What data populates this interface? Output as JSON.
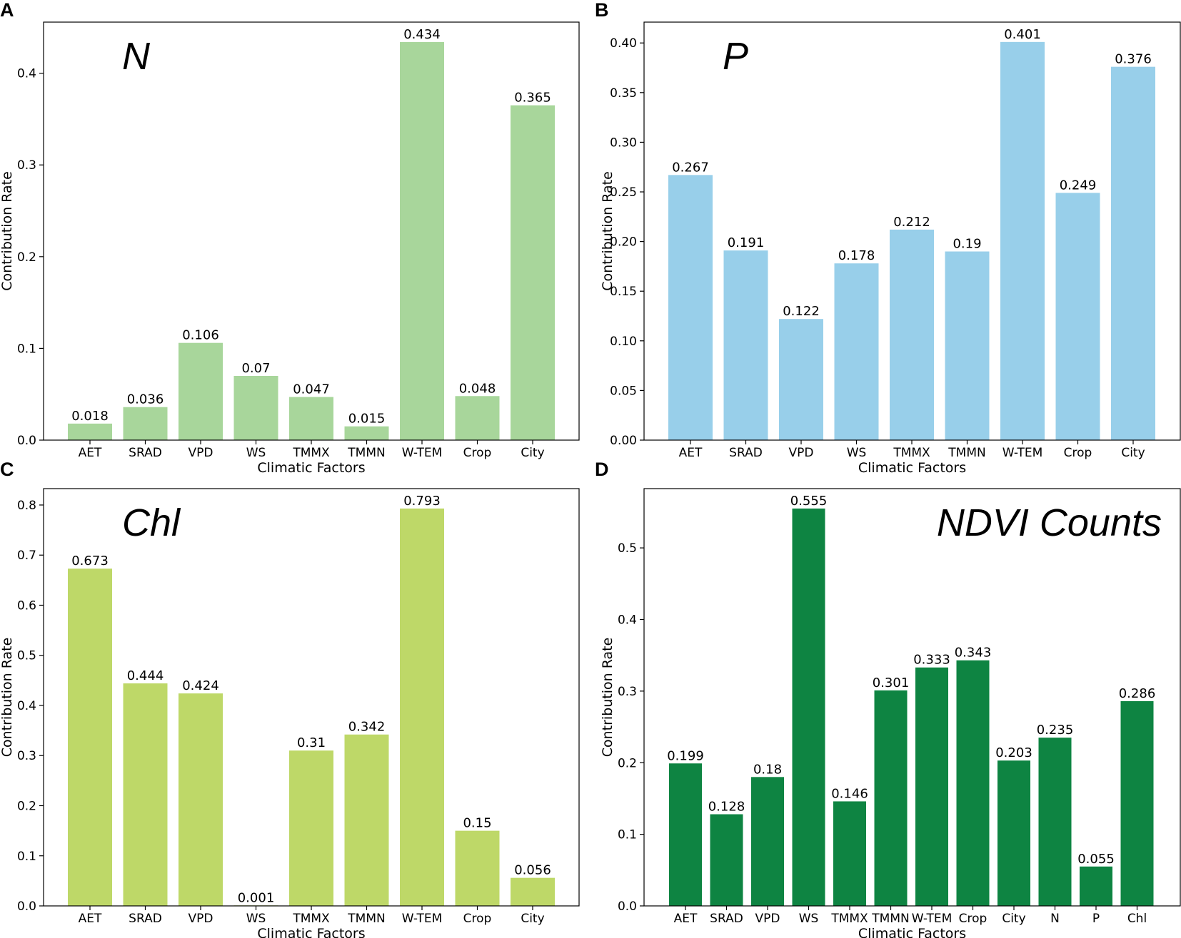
{
  "figure": {
    "panels": [
      "A",
      "B",
      "C",
      "D"
    ]
  },
  "chart_data": [
    {
      "panel": "A",
      "type": "bar",
      "title": "N",
      "title_position": "top-left",
      "xlabel": "Climatic Factors",
      "ylabel": "Contribution Rate",
      "categories": [
        "AET",
        "SRAD",
        "VPD",
        "WS",
        "TMMX",
        "TMMN",
        "W-TEM",
        "Crop",
        "City"
      ],
      "values": [
        0.018,
        0.036,
        0.106,
        0.07,
        0.047,
        0.015,
        0.434,
        0.048,
        0.365
      ],
      "value_labels": [
        "0.018",
        "0.036",
        "0.106",
        "0.07",
        "0.047",
        "0.015",
        "0.434",
        "0.048",
        "0.365"
      ],
      "yticks": [
        0.0,
        0.1,
        0.2,
        0.3,
        0.4
      ],
      "ytick_labels": [
        "0.0",
        "0.1",
        "0.2",
        "0.3",
        "0.4"
      ],
      "ylim": [
        0,
        0.4557
      ],
      "color": "#a8d69b",
      "grid": false
    },
    {
      "panel": "B",
      "type": "bar",
      "title": "P",
      "title_position": "top-left",
      "xlabel": "Climatic Factors",
      "ylabel": "Contribution Rate",
      "categories": [
        "AET",
        "SRAD",
        "VPD",
        "WS",
        "TMMX",
        "TMMN",
        "W-TEM",
        "Crop",
        "City"
      ],
      "values": [
        0.267,
        0.191,
        0.122,
        0.178,
        0.212,
        0.19,
        0.401,
        0.249,
        0.376
      ],
      "value_labels": [
        "0.267",
        "0.191",
        "0.122",
        "0.178",
        "0.212",
        "0.19",
        "0.401",
        "0.249",
        "0.376"
      ],
      "yticks": [
        0.0,
        0.05,
        0.1,
        0.15,
        0.2,
        0.25,
        0.3,
        0.35,
        0.4
      ],
      "ytick_labels": [
        "0.00",
        "0.05",
        "0.10",
        "0.15",
        "0.20",
        "0.25",
        "0.30",
        "0.35",
        "0.40"
      ],
      "ylim": [
        0,
        0.421
      ],
      "color": "#98cfea",
      "grid": false
    },
    {
      "panel": "C",
      "type": "bar",
      "title": "Chl",
      "title_position": "top-left",
      "xlabel": "Climatic Factors",
      "ylabel": "Contribution Rate",
      "categories": [
        "AET",
        "SRAD",
        "VPD",
        "WS",
        "TMMX",
        "TMMN",
        "W-TEM",
        "Crop",
        "City"
      ],
      "values": [
        0.673,
        0.444,
        0.424,
        0.001,
        0.31,
        0.342,
        0.793,
        0.15,
        0.056
      ],
      "value_labels": [
        "0.673",
        "0.444",
        "0.424",
        "0.001",
        "0.31",
        "0.342",
        "0.793",
        "0.15",
        "0.056"
      ],
      "yticks": [
        0.0,
        0.1,
        0.2,
        0.3,
        0.4,
        0.5,
        0.6,
        0.7,
        0.8
      ],
      "ytick_labels": [
        "0.0",
        "0.1",
        "0.2",
        "0.3",
        "0.4",
        "0.5",
        "0.6",
        "0.7",
        "0.8"
      ],
      "ylim": [
        0,
        0.8327
      ],
      "color": "#bed868",
      "grid": false
    },
    {
      "panel": "D",
      "type": "bar",
      "title": "NDVI Counts",
      "title_position": "top-right",
      "xlabel": "Climatic Factors",
      "ylabel": "Contribution Rate",
      "categories": [
        "AET",
        "SRAD",
        "VPD",
        "WS",
        "TMMX",
        "TMMN",
        "W-TEM",
        "Crop",
        "City",
        "N",
        "P",
        "Chl"
      ],
      "values": [
        0.199,
        0.128,
        0.18,
        0.555,
        0.146,
        0.301,
        0.333,
        0.343,
        0.203,
        0.235,
        0.055,
        0.286
      ],
      "value_labels": [
        "0.199",
        "0.128",
        "0.18",
        "0.555",
        "0.146",
        "0.301",
        "0.333",
        "0.343",
        "0.203",
        "0.235",
        "0.055",
        "0.286"
      ],
      "yticks": [
        0.0,
        0.1,
        0.2,
        0.3,
        0.4,
        0.5
      ],
      "ytick_labels": [
        "0.0",
        "0.1",
        "0.2",
        "0.3",
        "0.4",
        "0.5"
      ],
      "ylim": [
        0,
        0.5828
      ],
      "color": "#0e8442",
      "grid": false
    }
  ]
}
